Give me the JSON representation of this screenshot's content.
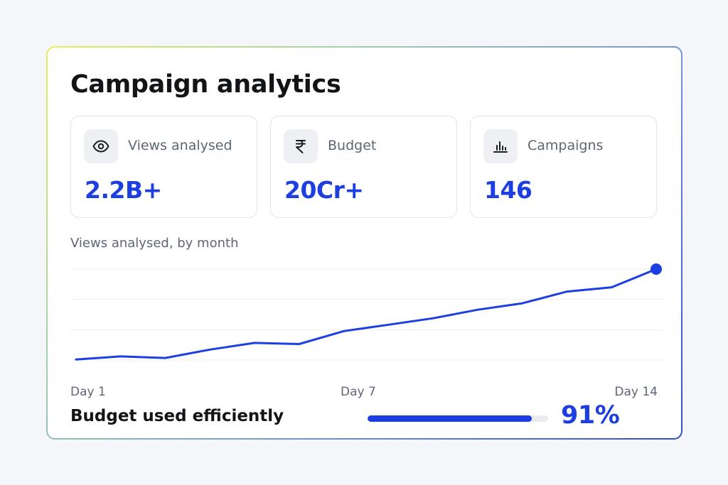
{
  "title": "Campaign analytics",
  "stats": [
    {
      "icon": "eye-icon",
      "label": "Views analysed",
      "value": "2.2B+"
    },
    {
      "icon": "rupee-icon",
      "label": "Budget",
      "value": "20Cr+"
    },
    {
      "icon": "bar-chart-icon",
      "label": "Campaigns",
      "value": "146"
    }
  ],
  "chart_caption": "Views analysed, by month",
  "chart_data": {
    "type": "line",
    "x": [
      1,
      2,
      3,
      4,
      5,
      6,
      7,
      8,
      9,
      10,
      11,
      12,
      13,
      14
    ],
    "tick_labels": [
      "Day 1",
      "Day 7",
      "Day 14"
    ],
    "values": [
      0.6,
      4.0,
      2.3,
      11.5,
      18.8,
      17.6,
      31.8,
      38.8,
      45.9,
      55.3,
      62.4,
      75.3,
      80.0,
      100.0
    ],
    "ylim": [
      0,
      100
    ],
    "grid": "horizontal",
    "line_color": "#1d3ee0",
    "highlight_last_point": true
  },
  "budget": {
    "label": "Budget used efficiently",
    "percent_text": "91%",
    "fraction": 0.91
  },
  "colors": {
    "accent": "#1d3ee0",
    "text": "#121418",
    "muted": "#5d6675"
  }
}
